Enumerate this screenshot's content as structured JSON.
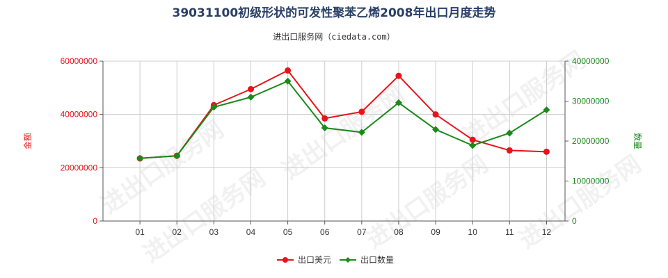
{
  "title": "39031100初级形状的可发性聚苯乙烯2008年出口月度走势",
  "subtitle": "进出口服务网（ciedata.com）",
  "watermark": "进出口服务网",
  "colors": {
    "value": "#e8141b",
    "quantity": "#1a8a1a",
    "grid": "#cccccc",
    "title": "#2a3f66"
  },
  "chart_data": {
    "type": "line",
    "categories": [
      "01",
      "02",
      "03",
      "04",
      "05",
      "06",
      "07",
      "08",
      "09",
      "10",
      "11",
      "12"
    ],
    "series": [
      {
        "name": "出口美元",
        "axis": "left",
        "values": [
          23500000,
          24500000,
          43500000,
          49500000,
          56500000,
          38500000,
          41000000,
          54500000,
          40000000,
          30500000,
          26500000,
          26000000
        ]
      },
      {
        "name": "出口数量",
        "axis": "right",
        "values": [
          15700000,
          16300000,
          28500000,
          31000000,
          35000000,
          23300000,
          22200000,
          29600000,
          22900000,
          18900000,
          22000000,
          27800000
        ]
      }
    ],
    "left_axis": {
      "label": "金额",
      "ylim": [
        0,
        60000000
      ],
      "ticks": [
        "0",
        "20000000",
        "40000000",
        "60000000"
      ]
    },
    "right_axis": {
      "label": "数量",
      "ylim": [
        0,
        40000000
      ],
      "ticks": [
        "0",
        "10000000",
        "20000000",
        "30000000",
        "40000000"
      ]
    },
    "grid": true,
    "legend_position": "bottom-center"
  }
}
